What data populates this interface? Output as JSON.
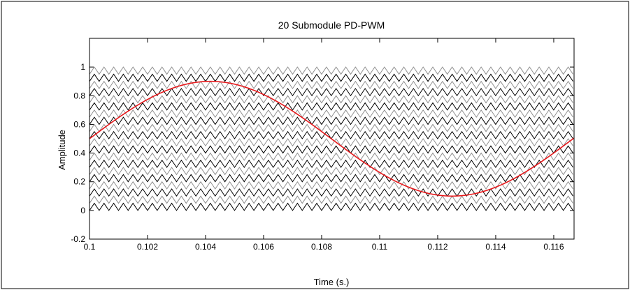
{
  "chart_data": {
    "type": "line",
    "title": "20 Submodule PD-PWM",
    "xlabel": "Time (s.)",
    "ylabel": "Amplitude",
    "xlim": [
      0.1,
      0.1167
    ],
    "ylim": [
      -0.2,
      1.2
    ],
    "x_ticks": [
      0.1,
      0.102,
      0.104,
      0.106,
      0.108,
      0.11,
      0.112,
      0.114,
      0.116
    ],
    "x_tick_labels": [
      "0.1",
      "0.102",
      "0.104",
      "0.106",
      "0.108",
      "0.11",
      "0.112",
      "0.114",
      "0.116"
    ],
    "y_ticks": [
      -0.2,
      0,
      0.2,
      0.4,
      0.6,
      0.8,
      1
    ],
    "y_tick_labels": [
      "-0.2",
      "0",
      "0.2",
      "0.4",
      "0.6",
      "0.8",
      "1"
    ],
    "grid": false,
    "legend": "none",
    "carriers": {
      "count": 20,
      "waveform": "triangle",
      "level_step": 0.05,
      "lowest_level": [
        0,
        0.05
      ],
      "highest_level": [
        0.95,
        1.0
      ],
      "period_s": 0.0003333,
      "colors": [
        "#000000",
        "#909090"
      ]
    },
    "series": [
      {
        "waveform": "sine",
        "offset": 0.5,
        "amplitude": 0.4,
        "frequency_hz": 60,
        "phase_reference_time_s": 0.1,
        "color": "#e8191c"
      }
    ]
  }
}
